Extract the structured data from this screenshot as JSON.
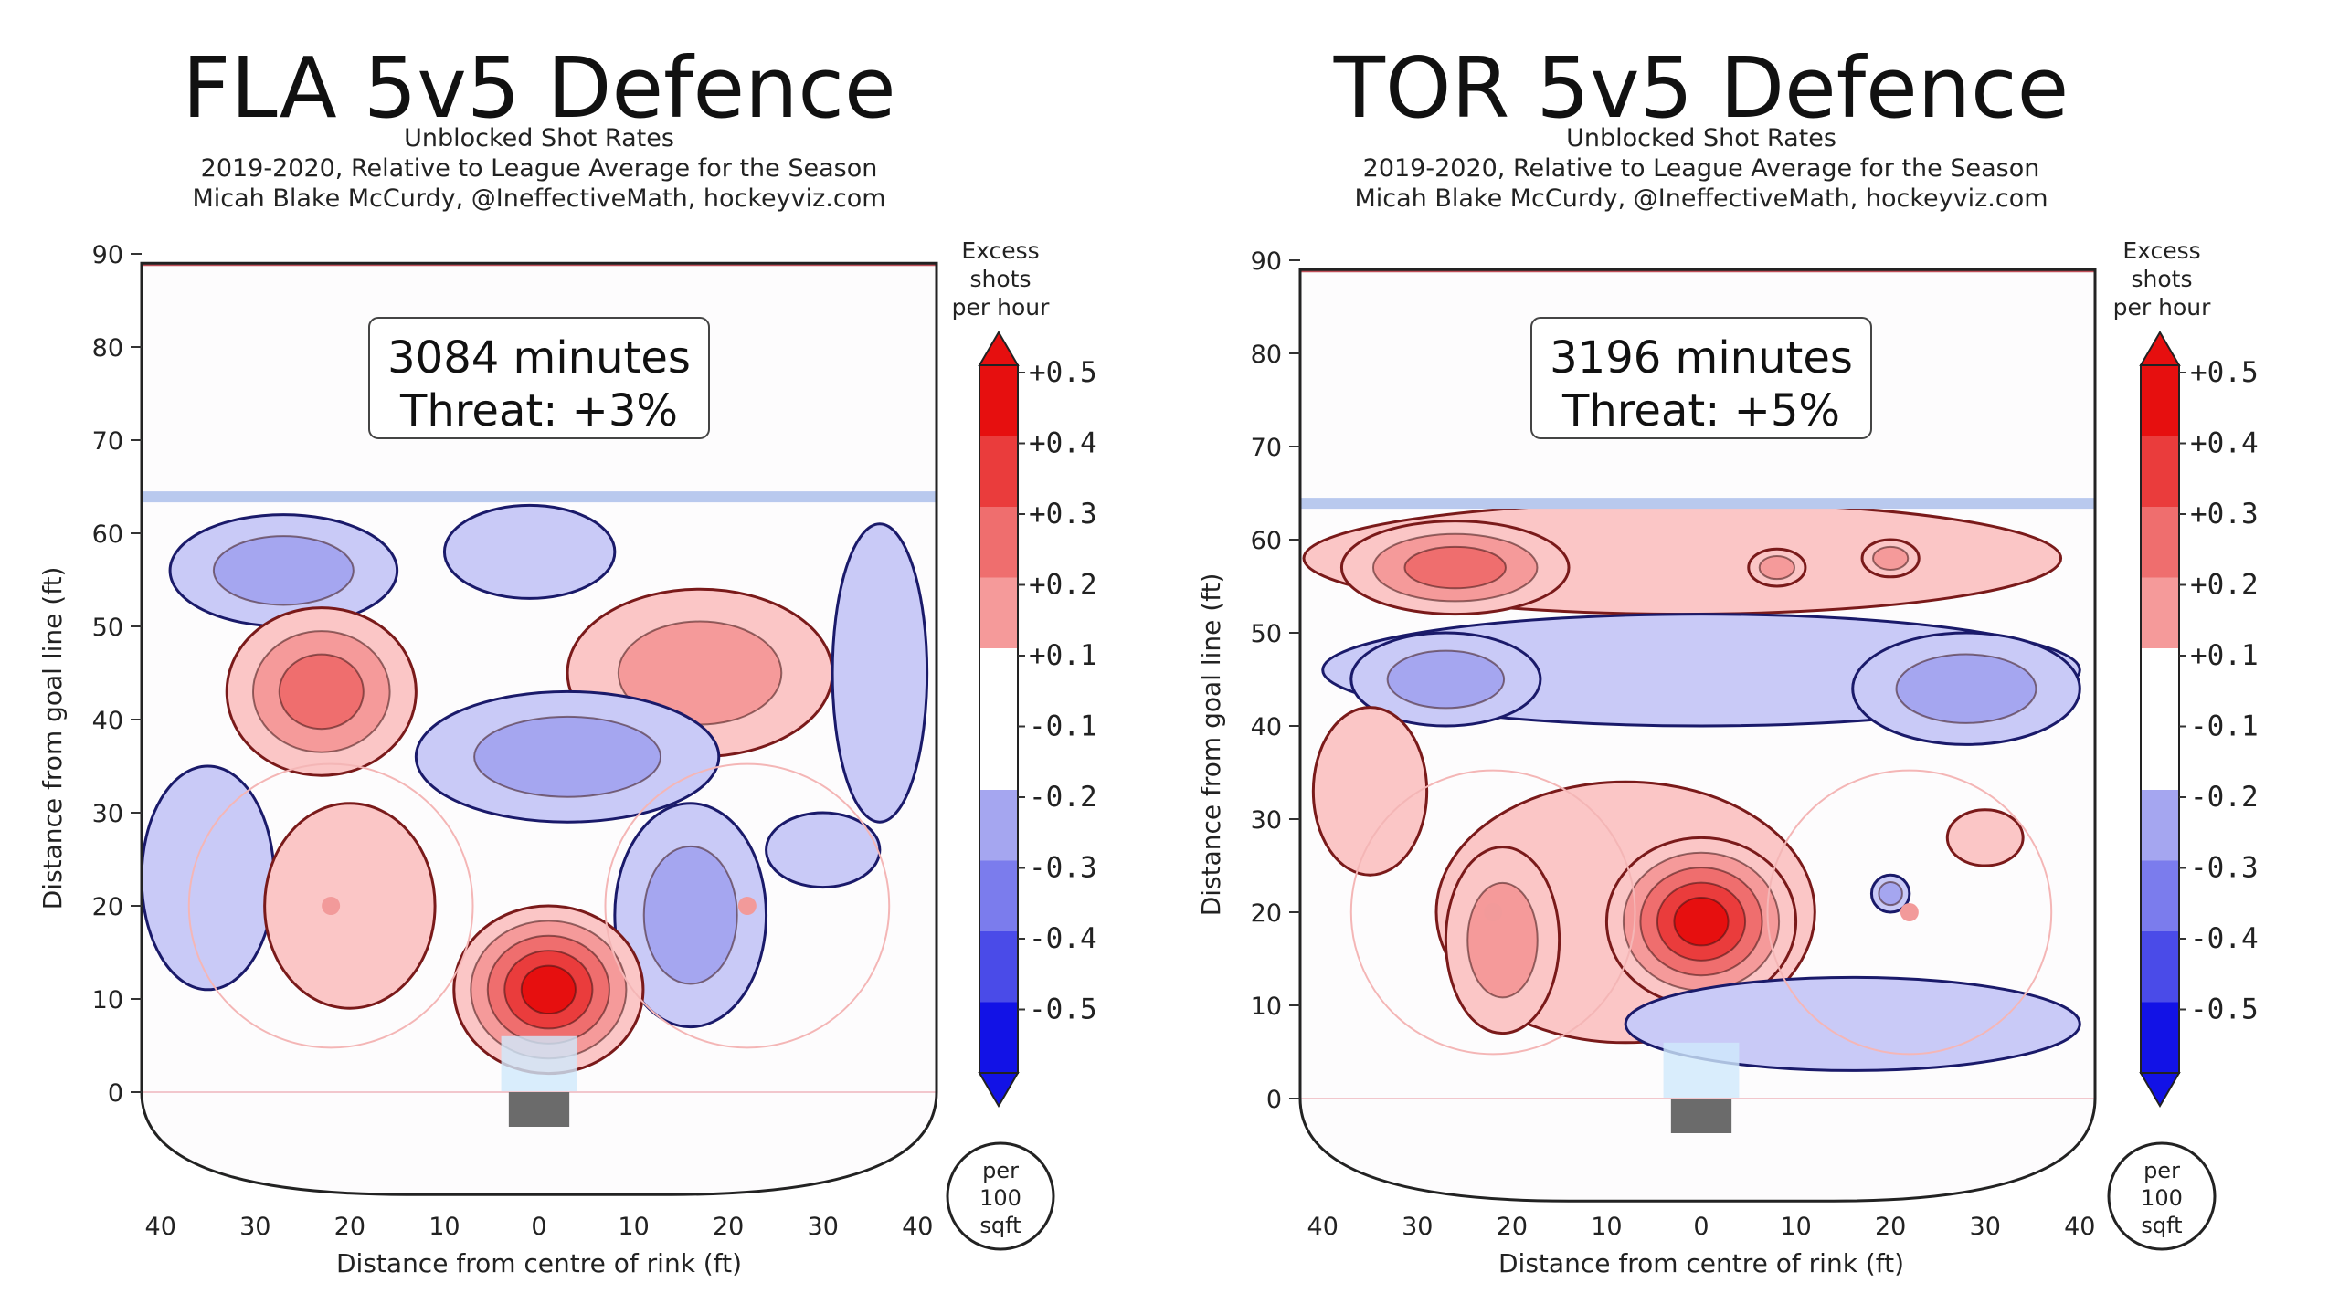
{
  "chart_data": [
    {
      "type": "heatmap",
      "title": "FLA 5v5 Defence",
      "subtitle_lines": [
        "Unblocked Shot Rates",
        "2019-2020, Relative to League Average for the Season",
        "Micah Blake McCurdy, @IneffectiveMath, hockeyviz.com"
      ],
      "annotation": {
        "minutes": "3084 minutes",
        "threat": "Threat: +3%"
      },
      "xlabel": "Distance from centre of rink (ft)",
      "ylabel": "Distance from goal line (ft)",
      "xlim": [
        -42,
        42
      ],
      "ylim": [
        -11,
        90
      ],
      "x_tick_labels": [
        "40",
        "30",
        "20",
        "10",
        "0",
        "10",
        "20",
        "30",
        "40"
      ],
      "y_ticks": [
        0,
        10,
        20,
        30,
        40,
        50,
        60,
        70,
        80,
        90
      ],
      "blobs": [
        {
          "x": -27,
          "y": 56,
          "rx": 12,
          "ry": 6,
          "value": -0.2
        },
        {
          "x": -1,
          "y": 58,
          "rx": 9,
          "ry": 5,
          "value": -0.1
        },
        {
          "x": -23,
          "y": 43,
          "rx": 10,
          "ry": 9,
          "value": 0.3
        },
        {
          "x": 17,
          "y": 45,
          "rx": 14,
          "ry": 9,
          "value": 0.2
        },
        {
          "x": 36,
          "y": 45,
          "rx": 5,
          "ry": 16,
          "value": -0.1
        },
        {
          "x": 3,
          "y": 36,
          "rx": 16,
          "ry": 7,
          "value": -0.2
        },
        {
          "x": -35,
          "y": 23,
          "rx": 7,
          "ry": 12,
          "value": -0.1
        },
        {
          "x": -20,
          "y": 20,
          "rx": 9,
          "ry": 11,
          "value": 0.1
        },
        {
          "x": 16,
          "y": 19,
          "rx": 8,
          "ry": 12,
          "value": -0.2
        },
        {
          "x": 30,
          "y": 26,
          "rx": 6,
          "ry": 4,
          "value": -0.1
        },
        {
          "x": 1,
          "y": 11,
          "rx": 10,
          "ry": 9,
          "value": 0.5
        }
      ],
      "colorbar": {
        "label_lines": [
          "Excess",
          "shots",
          "per hour"
        ],
        "tick_labels": [
          "+0.5",
          "+0.4",
          "+0.3",
          "+0.2",
          "+0.1",
          "-0.1",
          "-0.2",
          "-0.3",
          "-0.4",
          "-0.5"
        ],
        "unit_lines": [
          "per",
          "100",
          "sqft"
        ]
      }
    },
    {
      "type": "heatmap",
      "title": "TOR 5v5 Defence",
      "subtitle_lines": [
        "Unblocked Shot Rates",
        "2019-2020, Relative to League Average for the Season",
        "Micah Blake McCurdy, @IneffectiveMath, hockeyviz.com"
      ],
      "annotation": {
        "minutes": "3196 minutes",
        "threat": "Threat: +5%"
      },
      "xlabel": "Distance from centre of rink (ft)",
      "ylabel": "Distance from goal line (ft)",
      "xlim": [
        -42,
        42
      ],
      "ylim": [
        -11,
        90
      ],
      "x_tick_labels": [
        "40",
        "30",
        "20",
        "10",
        "0",
        "10",
        "20",
        "30",
        "40"
      ],
      "y_ticks": [
        0,
        10,
        20,
        30,
        40,
        50,
        60,
        70,
        80,
        90
      ],
      "blobs": [
        {
          "x": -2,
          "y": 58,
          "rx": 40,
          "ry": 6,
          "value": 0.1
        },
        {
          "x": -26,
          "y": 57,
          "rx": 12,
          "ry": 5,
          "value": 0.3
        },
        {
          "x": 8,
          "y": 57,
          "rx": 3,
          "ry": 2,
          "value": 0.2
        },
        {
          "x": 20,
          "y": 58,
          "rx": 3,
          "ry": 2,
          "value": 0.2
        },
        {
          "x": 0,
          "y": 46,
          "rx": 40,
          "ry": 6,
          "value": -0.1
        },
        {
          "x": -27,
          "y": 45,
          "rx": 10,
          "ry": 5,
          "value": -0.2
        },
        {
          "x": 28,
          "y": 44,
          "rx": 12,
          "ry": 6,
          "value": -0.2
        },
        {
          "x": -35,
          "y": 33,
          "rx": 6,
          "ry": 9,
          "value": 0.1
        },
        {
          "x": -8,
          "y": 20,
          "rx": 20,
          "ry": 14,
          "value": 0.1
        },
        {
          "x": -21,
          "y": 17,
          "rx": 6,
          "ry": 10,
          "value": 0.2
        },
        {
          "x": 0,
          "y": 19,
          "rx": 10,
          "ry": 9,
          "value": 0.5
        },
        {
          "x": 30,
          "y": 28,
          "rx": 4,
          "ry": 3,
          "value": 0.1
        },
        {
          "x": 20,
          "y": 22,
          "rx": 2,
          "ry": 2,
          "value": -0.2
        },
        {
          "x": 16,
          "y": 8,
          "rx": 24,
          "ry": 5,
          "value": -0.1
        }
      ],
      "colorbar": {
        "label_lines": [
          "Excess",
          "shots",
          "per hour"
        ],
        "tick_labels": [
          "+0.5",
          "+0.4",
          "+0.3",
          "+0.2",
          "+0.1",
          "-0.1",
          "-0.2",
          "-0.3",
          "-0.4",
          "-0.5"
        ],
        "unit_lines": [
          "per",
          "100",
          "sqft"
        ]
      }
    }
  ]
}
